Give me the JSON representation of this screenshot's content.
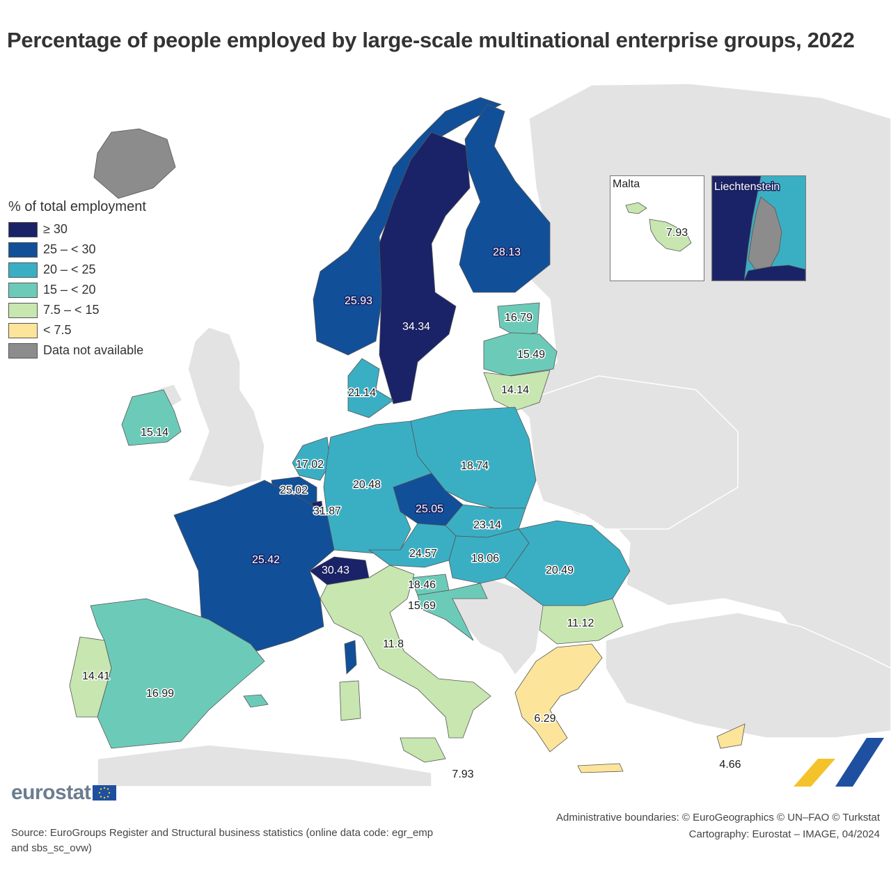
{
  "title": "Percentage of people employed by large-scale multinational enterprise groups, 2022",
  "legend": {
    "title": "% of total employment",
    "items": [
      {
        "label": "≥ 30",
        "color": "#1a2367"
      },
      {
        "label": "25 – < 30",
        "color": "#114f99"
      },
      {
        "label": "20 – < 25",
        "color": "#3aafc4"
      },
      {
        "label": "15 – < 20",
        "color": "#6ccbb8"
      },
      {
        "label": "7.5 – < 15",
        "color": "#c7e6b0"
      },
      {
        "label": "< 7.5",
        "color": "#fce59a"
      },
      {
        "label": "Data not available",
        "color": "#8c8c8c"
      }
    ]
  },
  "countries": [
    {
      "name": "Sweden",
      "value": "34.34"
    },
    {
      "name": "Finland",
      "value": "28.13"
    },
    {
      "name": "Norway",
      "value": "25.93"
    },
    {
      "name": "Estonia",
      "value": "16.79"
    },
    {
      "name": "Latvia",
      "value": "15.49"
    },
    {
      "name": "Lithuania",
      "value": "14.14"
    },
    {
      "name": "Denmark",
      "value": "21.14"
    },
    {
      "name": "Ireland",
      "value": "15.14"
    },
    {
      "name": "Netherlands",
      "value": "17.02"
    },
    {
      "name": "Belgium",
      "value": "25.02"
    },
    {
      "name": "Luxembourg",
      "value": "31.87"
    },
    {
      "name": "Germany",
      "value": "20.48"
    },
    {
      "name": "Poland",
      "value": "18.74"
    },
    {
      "name": "Czechia",
      "value": "25.05"
    },
    {
      "name": "Slovakia",
      "value": "23.14"
    },
    {
      "name": "Austria",
      "value": "24.57"
    },
    {
      "name": "Hungary",
      "value": "18.06"
    },
    {
      "name": "Romania",
      "value": "20.49"
    },
    {
      "name": "France",
      "value": "25.42"
    },
    {
      "name": "Switzerland",
      "value": "30.43"
    },
    {
      "name": "Slovenia",
      "value": "18.46"
    },
    {
      "name": "Croatia",
      "value": "15.69"
    },
    {
      "name": "Bulgaria",
      "value": "11.12"
    },
    {
      "name": "Italy",
      "value": "11.8"
    },
    {
      "name": "Portugal",
      "value": "14.41"
    },
    {
      "name": "Spain",
      "value": "16.99"
    },
    {
      "name": "Greece",
      "value": "6.29"
    },
    {
      "name": "Malta",
      "value": "7.93"
    },
    {
      "name": "Cyprus",
      "value": "4.66"
    }
  ],
  "insets": {
    "malta": {
      "title": "Malta",
      "value": "7.93"
    },
    "liechtenstein": {
      "title": "Liechtenstein"
    }
  },
  "logo": "eurostat",
  "source": "Source: EuroGroups Register and Structural business statistics (online data code: egr_emp and sbs_sc_ovw)",
  "credits": {
    "line1": "Administrative boundaries: © EuroGeographics © UN–FAO © Turkstat",
    "line2": "Cartography: Eurostat – IMAGE, 04/2024"
  }
}
